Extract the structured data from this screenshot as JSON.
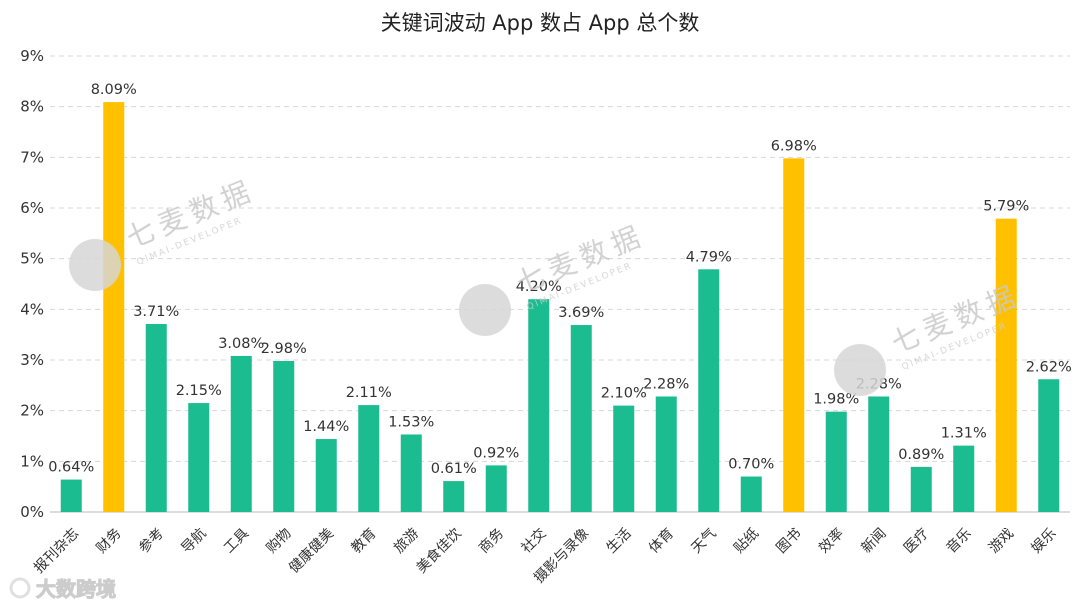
{
  "chart_data": {
    "type": "bar",
    "title": "关键词波动 App 数占 App 总个数",
    "categories": [
      "报刊杂志",
      "财务",
      "参考",
      "导航",
      "工具",
      "购物",
      "健康健美",
      "教育",
      "旅游",
      "美食佳饮",
      "商务",
      "社交",
      "摄影与录像",
      "生活",
      "体育",
      "天气",
      "贴纸",
      "图书",
      "效率",
      "新闻",
      "医疗",
      "音乐",
      "游戏",
      "娱乐"
    ],
    "values": [
      0.64,
      8.09,
      3.71,
      2.15,
      3.08,
      2.98,
      1.44,
      2.11,
      1.53,
      0.61,
      0.92,
      4.2,
      3.69,
      2.1,
      2.28,
      4.79,
      0.7,
      6.98,
      1.98,
      2.28,
      0.89,
      1.31,
      5.79,
      2.62
    ],
    "data_labels": [
      "0.64%",
      "8.09%",
      "3.71%",
      "2.15%",
      "3.08%",
      "2.98%",
      "1.44%",
      "2.11%",
      "1.53%",
      "0.61%",
      "0.92%",
      "4.20%",
      "3.69%",
      "2.10%",
      "2.28%",
      "4.79%",
      "0.70%",
      "6.98%",
      "1.98%",
      "2.28%",
      "0.89%",
      "1.31%",
      "5.79%",
      "2.62%"
    ],
    "highlight_categories": [
      "财务",
      "图书",
      "游戏"
    ],
    "y_ticks": [
      "0%",
      "1%",
      "2%",
      "3%",
      "4%",
      "5%",
      "6%",
      "7%",
      "8%",
      "9%"
    ],
    "ylim": [
      0,
      9
    ],
    "xlabel": "",
    "ylabel": "",
    "grid": true,
    "colors": {
      "default": "#1bbc8f",
      "highlight": "#ffc000"
    }
  },
  "watermark": {
    "text": "七麦数据",
    "subtext": "QIMAI-DEVELOPER"
  },
  "source_logo": {
    "text": "大数跨境"
  }
}
